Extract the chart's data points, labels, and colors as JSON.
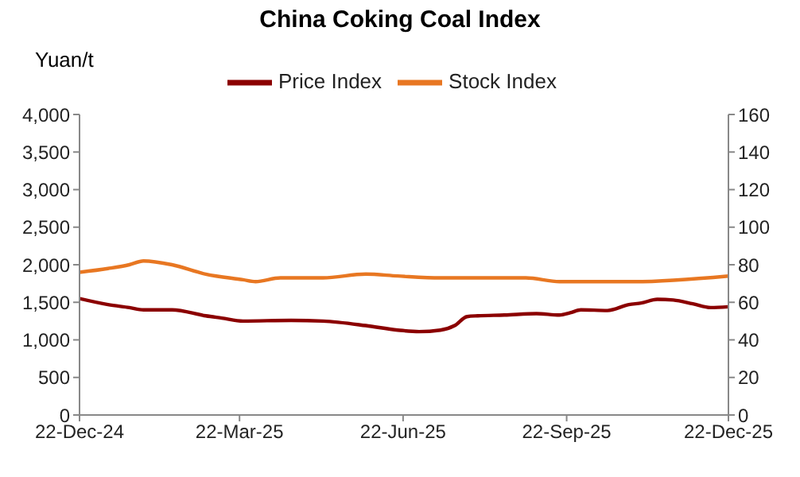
{
  "chart_data": {
    "type": "line",
    "title": "China Coking Coal Index",
    "ylabel": "Yuan/t",
    "xlim": [
      "2024-12-22",
      "2025-12-22"
    ],
    "xticks": [
      {
        "value": "2024-12-22",
        "label": "22-Dec-24"
      },
      {
        "value": "2025-03-22",
        "label": "22-Mar-25"
      },
      {
        "value": "2025-06-22",
        "label": "22-Jun-25"
      },
      {
        "value": "2025-09-22",
        "label": "22-Sep-25"
      },
      {
        "value": "2025-12-22",
        "label": "22-Dec-25"
      }
    ],
    "ylim": [
      0,
      4000
    ],
    "yticks": [
      {
        "value": 0,
        "label": "0"
      },
      {
        "value": 500,
        "label": "500"
      },
      {
        "value": 1000,
        "label": "1,000"
      },
      {
        "value": 1500,
        "label": "1,500"
      },
      {
        "value": 2000,
        "label": "2,000"
      },
      {
        "value": 2500,
        "label": "2,500"
      },
      {
        "value": 3000,
        "label": "3,000"
      },
      {
        "value": 3500,
        "label": "3,500"
      },
      {
        "value": 4000,
        "label": "4,000"
      }
    ],
    "y2lim": [
      0,
      160
    ],
    "y2ticks": [
      0,
      20,
      40,
      60,
      80,
      100,
      120,
      140,
      160
    ],
    "legend": "top",
    "marker": "none",
    "line_style": "solid",
    "series": [
      {
        "name": "Price Index",
        "color": "#8b0000",
        "x": [
          "2024-12-22",
          "2025-01-07",
          "2025-01-19",
          "2025-01-27",
          "2025-02-12",
          "2025-03-03",
          "2025-03-12",
          "2025-03-24",
          "2025-04-20",
          "2025-05-08",
          "2025-06-01",
          "2025-06-19",
          "2025-07-01",
          "2025-07-13",
          "2025-07-21",
          "2025-07-28",
          "2025-08-03",
          "2025-08-18",
          "2025-09-05",
          "2025-09-18",
          "2025-09-24",
          "2025-09-30",
          "2025-10-15",
          "2025-10-27",
          "2025-11-03",
          "2025-11-12",
          "2025-11-21",
          "2025-12-02",
          "2025-12-12",
          "2025-12-22"
        ],
        "values": [
          1550,
          1470,
          1430,
          1400,
          1400,
          1320,
          1290,
          1250,
          1260,
          1250,
          1190,
          1130,
          1110,
          1130,
          1190,
          1310,
          1320,
          1330,
          1350,
          1330,
          1360,
          1400,
          1390,
          1470,
          1490,
          1540,
          1530,
          1480,
          1430,
          1440
        ]
      },
      {
        "name": "Stock Index",
        "color": "#e87722",
        "axis": "y2",
        "x": [
          "2024-12-22",
          "2025-01-07",
          "2025-01-19",
          "2025-01-27",
          "2025-02-12",
          "2025-03-03",
          "2025-03-24",
          "2025-03-31",
          "2025-04-14",
          "2025-05-08",
          "2025-06-01",
          "2025-06-19",
          "2025-07-13",
          "2025-08-30",
          "2025-09-18",
          "2025-09-30",
          "2025-10-15",
          "2025-10-30",
          "2025-12-22"
        ],
        "values": [
          76,
          78,
          80,
          82,
          80,
          75,
          72,
          71,
          73,
          73,
          75,
          74,
          73,
          73,
          71,
          71,
          71,
          71,
          74
        ]
      }
    ]
  }
}
